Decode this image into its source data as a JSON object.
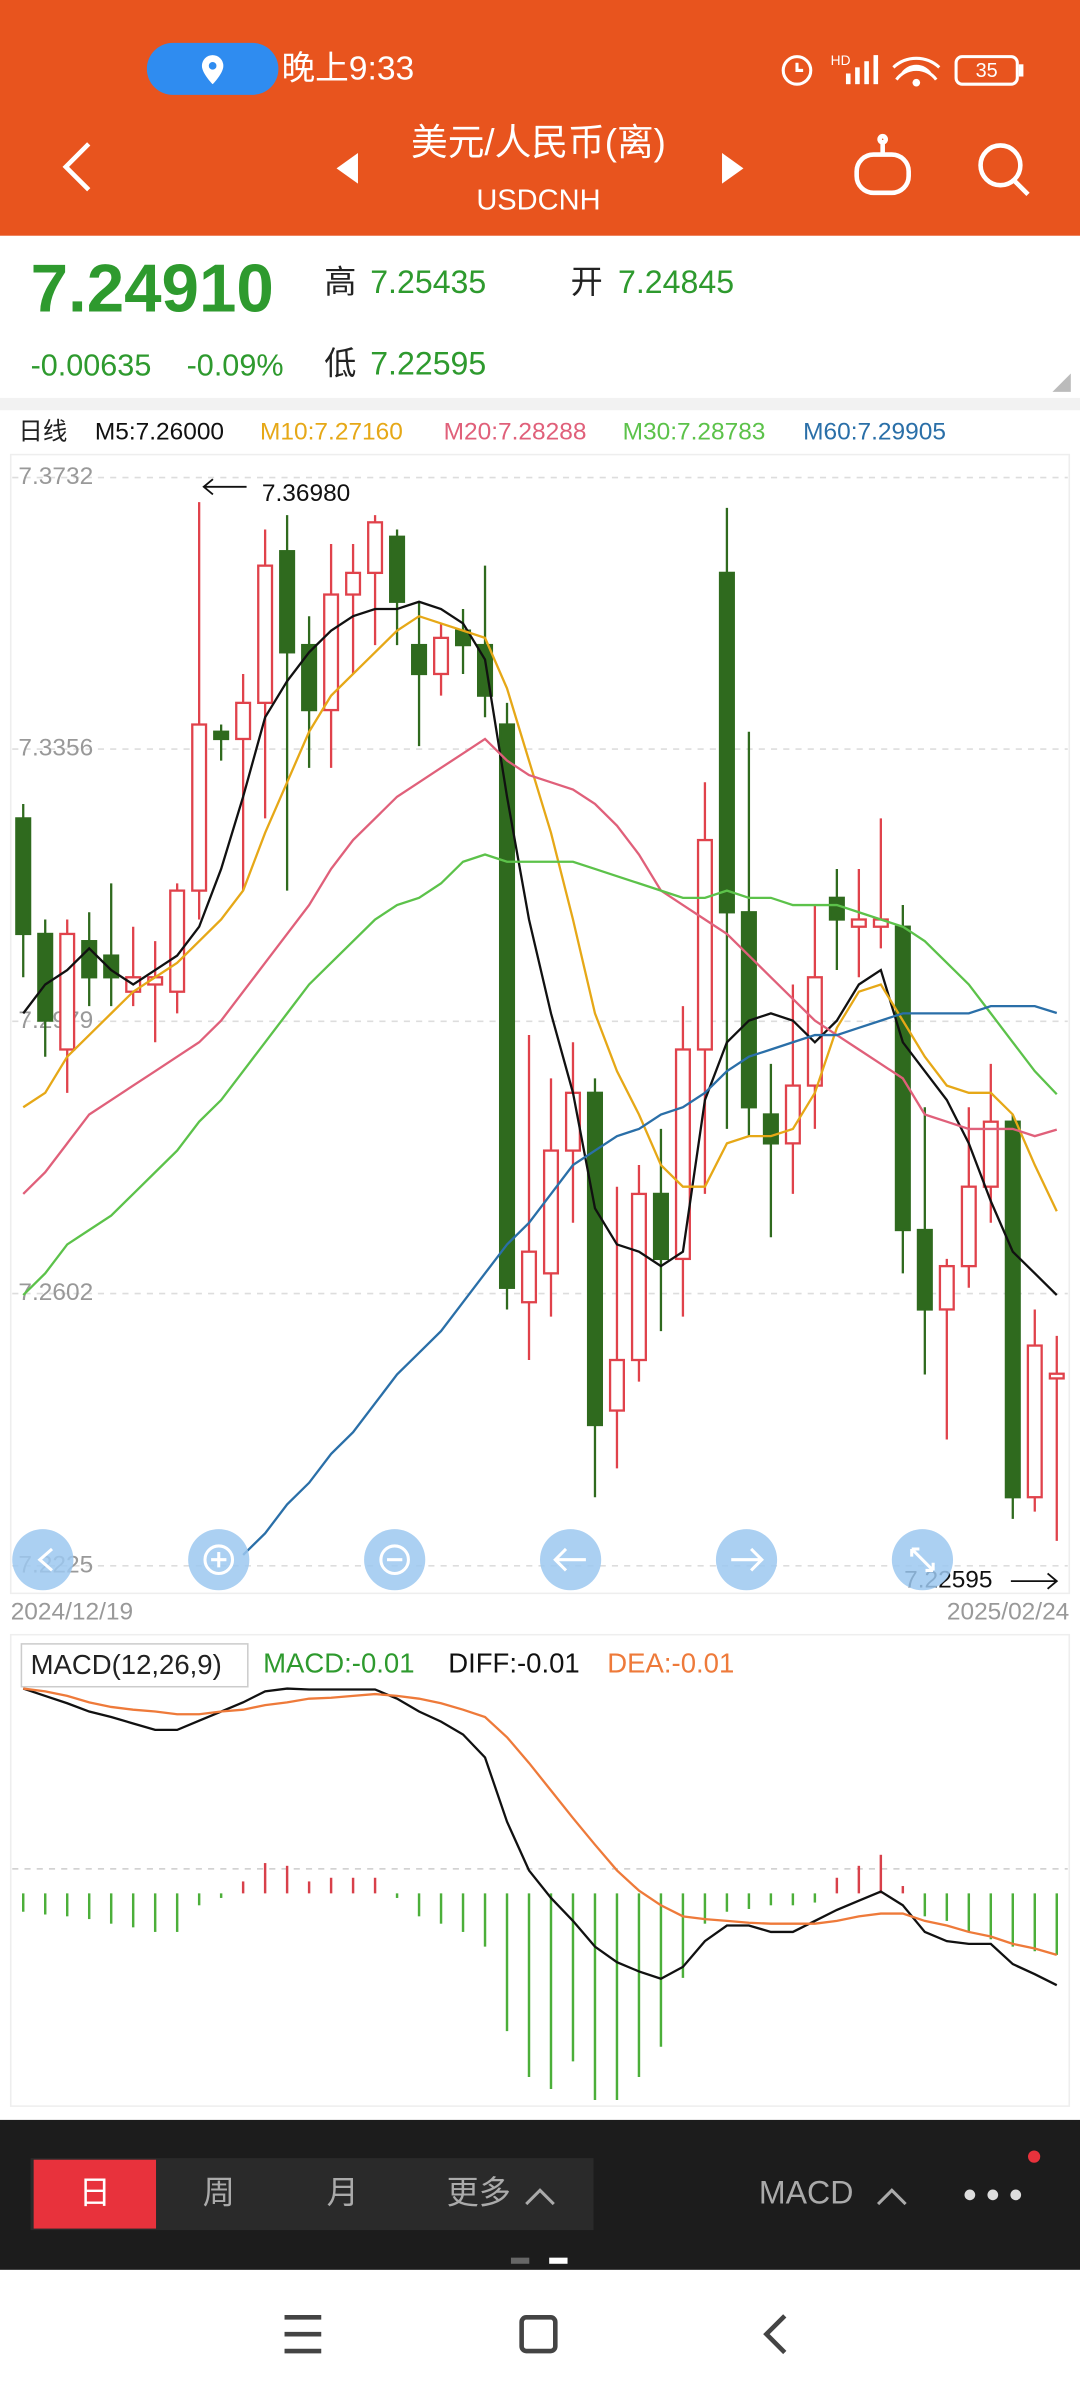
{
  "status_bar": {
    "time": "晚上9:33",
    "battery": "35"
  },
  "nav": {
    "title": "美元/人民币(离)",
    "symbol": "USDCNH"
  },
  "quote": {
    "price": "7.24910",
    "high_label": "高",
    "high": "7.25435",
    "open_label": "开",
    "open": "7.24845",
    "change": "-0.00635",
    "change_pct": "-0.09%",
    "low_label": "低",
    "low": "7.22595"
  },
  "chart_data": [
    {
      "type": "candlestick",
      "title": "日线",
      "categories": [
        "2024/12/19",
        null,
        null,
        null,
        null,
        null,
        null,
        null,
        null,
        null,
        null,
        null,
        null,
        null,
        null,
        null,
        null,
        null,
        null,
        null,
        null,
        null,
        null,
        null,
        null,
        null,
        null,
        null,
        null,
        null,
        null,
        null,
        null,
        null,
        null,
        null,
        null,
        null,
        null,
        null,
        null,
        null,
        null,
        null,
        null,
        null,
        null,
        "2025/02/24"
      ],
      "open": [
        7.326,
        7.31,
        7.294,
        7.309,
        7.307,
        7.302,
        7.303,
        7.302,
        7.316,
        7.338,
        7.337,
        7.342,
        7.363,
        7.35,
        7.341,
        7.357,
        7.36,
        7.365,
        7.35,
        7.346,
        7.352,
        7.35,
        7.339,
        7.259,
        7.263,
        7.28,
        7.288,
        7.244,
        7.251,
        7.274,
        7.265,
        7.294,
        7.36,
        7.313,
        7.285,
        7.281,
        7.289,
        7.315,
        7.311,
        7.311,
        7.311,
        7.269,
        7.258,
        7.264,
        7.275,
        7.284,
        7.232,
        7.24845
      ],
      "high": [
        7.328,
        7.312,
        7.312,
        7.313,
        7.317,
        7.311,
        7.309,
        7.317,
        7.3698,
        7.339,
        7.346,
        7.366,
        7.368,
        7.354,
        7.364,
        7.364,
        7.368,
        7.366,
        7.356,
        7.353,
        7.355,
        7.361,
        7.342,
        7.296,
        7.29,
        7.295,
        7.29,
        7.275,
        7.278,
        7.283,
        7.3,
        7.331,
        7.369,
        7.338,
        7.292,
        7.303,
        7.314,
        7.319,
        7.319,
        7.326,
        7.314,
        7.286,
        7.265,
        7.286,
        7.292,
        7.285,
        7.258,
        7.25435
      ],
      "low": [
        7.304,
        7.293,
        7.288,
        7.3,
        7.3,
        7.3,
        7.295,
        7.299,
        7.312,
        7.334,
        7.316,
        7.326,
        7.316,
        7.333,
        7.333,
        7.346,
        7.35,
        7.35,
        7.336,
        7.343,
        7.346,
        7.34,
        7.258,
        7.251,
        7.257,
        7.27,
        7.232,
        7.236,
        7.248,
        7.255,
        7.257,
        7.274,
        7.283,
        7.282,
        7.268,
        7.274,
        7.283,
        7.305,
        7.304,
        7.308,
        7.263,
        7.249,
        7.24,
        7.261,
        7.27,
        7.229,
        7.23,
        7.22595
      ],
      "close": [
        7.31,
        7.298,
        7.31,
        7.304,
        7.304,
        7.304,
        7.304,
        7.316,
        7.339,
        7.337,
        7.342,
        7.361,
        7.349,
        7.341,
        7.357,
        7.36,
        7.367,
        7.356,
        7.346,
        7.351,
        7.35,
        7.343,
        7.261,
        7.266,
        7.28,
        7.288,
        7.242,
        7.251,
        7.274,
        7.265,
        7.294,
        7.323,
        7.313,
        7.286,
        7.281,
        7.289,
        7.304,
        7.312,
        7.312,
        7.312,
        7.269,
        7.258,
        7.264,
        7.275,
        7.284,
        7.232,
        7.253,
        7.2491
      ],
      "up_color": "#e0424b",
      "down_color": "#2f6a1e",
      "series": [
        {
          "name": "M5:7.26000",
          "color": "#111111",
          "values": [
            7.299,
            7.303,
            7.305,
            7.308,
            7.305,
            7.303,
            7.305,
            7.307,
            7.311,
            7.319,
            7.329,
            7.34,
            7.345,
            7.349,
            7.352,
            7.354,
            7.355,
            7.355,
            7.356,
            7.355,
            7.353,
            7.348,
            7.329,
            7.312,
            7.299,
            7.288,
            7.272,
            7.267,
            7.266,
            7.264,
            7.266,
            7.287,
            7.295,
            7.298,
            7.299,
            7.298,
            7.295,
            7.298,
            7.303,
            7.305,
            7.295,
            7.291,
            7.287,
            7.281,
            7.273,
            7.266,
            7.263,
            7.26
          ]
        },
        {
          "name": "M10:7.27160",
          "color": "#e6a817",
          "values": [
            7.286,
            7.288,
            7.293,
            7.296,
            7.299,
            7.302,
            7.304,
            7.306,
            7.309,
            7.312,
            7.316,
            7.324,
            7.331,
            7.338,
            7.343,
            7.346,
            7.349,
            7.352,
            7.354,
            7.353,
            7.352,
            7.351,
            7.344,
            7.334,
            7.324,
            7.312,
            7.299,
            7.291,
            7.285,
            7.278,
            7.275,
            7.275,
            7.281,
            7.282,
            7.282,
            7.283,
            7.288,
            7.297,
            7.302,
            7.303,
            7.298,
            7.293,
            7.289,
            7.288,
            7.288,
            7.285,
            7.278,
            7.2716
          ]
        },
        {
          "name": "M20:7.28288",
          "color": "#e0607a",
          "values": [
            7.274,
            7.277,
            7.281,
            7.285,
            7.287,
            7.289,
            7.291,
            7.293,
            7.295,
            7.298,
            7.302,
            7.306,
            7.31,
            7.314,
            7.319,
            7.323,
            7.326,
            7.329,
            7.331,
            7.333,
            7.335,
            7.337,
            7.334,
            7.332,
            7.331,
            7.33,
            7.328,
            7.325,
            7.321,
            7.316,
            7.314,
            7.312,
            7.31,
            7.307,
            7.304,
            7.301,
            7.298,
            7.296,
            7.294,
            7.292,
            7.29,
            7.285,
            7.284,
            7.283,
            7.283,
            7.283,
            7.282,
            7.2829
          ]
        },
        {
          "name": "M30:7.28783",
          "color": "#5cc24a",
          "values": [
            7.26,
            7.263,
            7.267,
            7.269,
            7.271,
            7.274,
            7.277,
            7.28,
            7.284,
            7.287,
            7.291,
            7.295,
            7.299,
            7.303,
            7.306,
            7.309,
            7.312,
            7.314,
            7.315,
            7.317,
            7.32,
            7.321,
            7.32,
            7.32,
            7.32,
            7.32,
            7.319,
            7.318,
            7.317,
            7.316,
            7.315,
            7.315,
            7.316,
            7.315,
            7.315,
            7.314,
            7.314,
            7.314,
            7.313,
            7.312,
            7.311,
            7.309,
            7.306,
            7.303,
            7.299,
            7.295,
            7.291,
            7.2878
          ]
        },
        {
          "name": "M60:7.29905",
          "color": "#2a6fa8",
          "values": [
            null,
            null,
            null,
            null,
            null,
            null,
            null,
            null,
            null,
            null,
            7.224,
            7.227,
            7.231,
            7.234,
            7.238,
            7.241,
            7.245,
            7.249,
            7.252,
            7.255,
            7.259,
            7.263,
            7.267,
            7.27,
            7.274,
            7.278,
            7.28,
            7.282,
            7.283,
            7.285,
            7.286,
            7.288,
            7.291,
            7.293,
            7.294,
            7.295,
            7.296,
            7.296,
            7.297,
            7.298,
            7.299,
            7.299,
            7.299,
            7.299,
            7.3,
            7.3,
            7.3,
            7.29905
          ]
        }
      ],
      "ylim": [
        7.2225,
        7.3732
      ],
      "yticks": [
        7.3732,
        7.3356,
        7.2979,
        7.2602,
        7.2225
      ],
      "grid": true,
      "max_label": {
        "value": 7.3698,
        "label": "7.36980"
      },
      "min_label": {
        "value": 7.22595,
        "label": "7.22595"
      }
    },
    {
      "type": "macd",
      "title": "MACD(12,26,9)",
      "histogram": {
        "name": "MACD:-0.01",
        "color": "#2e9a2e",
        "up_color": "#d8404a",
        "down_color": "#4caf3a",
        "values": [
          -0.002,
          -0.0023,
          -0.0025,
          -0.0028,
          -0.0033,
          -0.0037,
          -0.0042,
          -0.0042,
          -0.0013,
          -0.0005,
          0.0013,
          0.0033,
          0.003,
          0.0013,
          0.0017,
          0.0017,
          0.0017,
          -0.0005,
          -0.0025,
          -0.0033,
          -0.0042,
          -0.0058,
          -0.015,
          -0.02,
          -0.0213,
          -0.0183,
          -0.0225,
          -0.0225,
          -0.02,
          -0.0167,
          -0.0092,
          -0.0033,
          -0.002,
          -0.0017,
          -0.0013,
          -0.0013,
          -0.001,
          0.0017,
          0.003,
          0.0042,
          0.0008,
          -0.0025,
          -0.003,
          -0.0042,
          -0.005,
          -0.0058,
          -0.0063,
          -0.0067
        ]
      },
      "series": [
        {
          "name": "DIFF:-0.01",
          "color": "#111111",
          "values": [
            0.0223,
            0.0215,
            0.0207,
            0.0198,
            0.0192,
            0.0185,
            0.0178,
            0.0178,
            0.0188,
            0.0198,
            0.0208,
            0.022,
            0.0223,
            0.0222,
            0.0222,
            0.0222,
            0.0222,
            0.0212,
            0.0198,
            0.0187,
            0.0173,
            0.0148,
            0.0078,
            0.0025,
            -0.0005,
            -0.003,
            -0.0058,
            -0.0075,
            -0.0085,
            -0.0093,
            -0.008,
            -0.0052,
            -0.0035,
            -0.0035,
            -0.0042,
            -0.0042,
            -0.003,
            -0.0018,
            -0.0008,
            0.0002,
            -0.0013,
            -0.0042,
            -0.0052,
            -0.0055,
            -0.0055,
            -0.0077,
            -0.0088,
            -0.01
          ]
        },
        {
          "name": "DEA:-0.01",
          "color": "#ee7a3a",
          "values": [
            0.0223,
            0.022,
            0.0215,
            0.0208,
            0.0203,
            0.02,
            0.0198,
            0.0195,
            0.0195,
            0.0198,
            0.02,
            0.0205,
            0.0208,
            0.0212,
            0.0213,
            0.0215,
            0.0217,
            0.0215,
            0.0212,
            0.0207,
            0.02,
            0.0192,
            0.017,
            0.0142,
            0.0112,
            0.0082,
            0.0053,
            0.0025,
            0.0003,
            -0.0013,
            -0.0025,
            -0.0028,
            -0.003,
            -0.0032,
            -0.0033,
            -0.0033,
            -0.0033,
            -0.003,
            -0.0025,
            -0.0022,
            -0.0022,
            -0.003,
            -0.0035,
            -0.0042,
            -0.0047,
            -0.0055,
            -0.006,
            -0.0067
          ]
        }
      ],
      "ylim": [
        -0.023,
        0.027
      ]
    }
  ],
  "tabs": {
    "items": [
      "日",
      "周",
      "月",
      "更多"
    ],
    "indicator": "MACD"
  }
}
